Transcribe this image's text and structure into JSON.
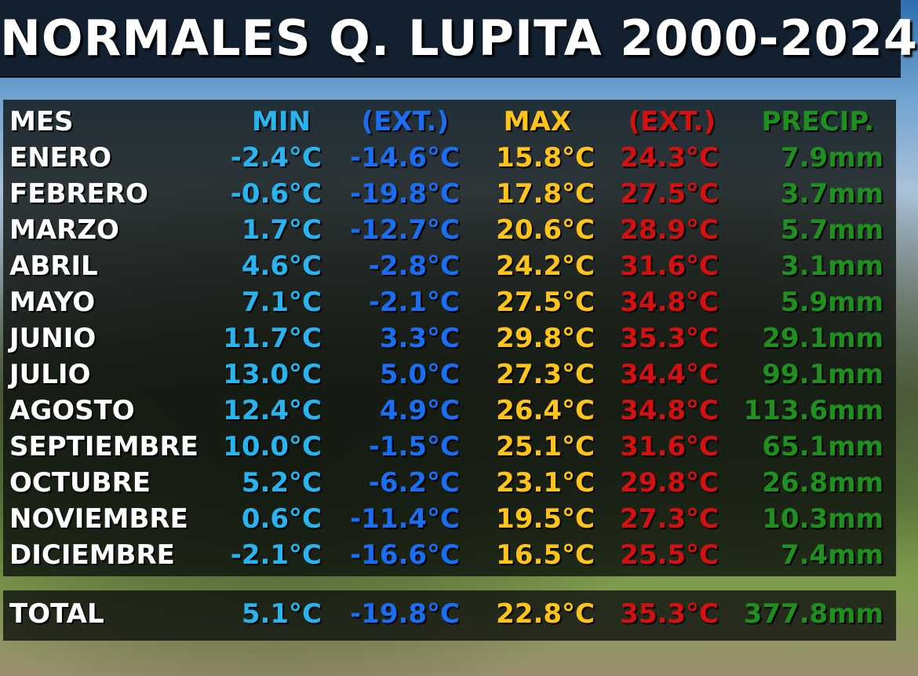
{
  "title": "NORMALES Q. LUPITA 2000-2024",
  "headers": {
    "mes": "MES",
    "min": "MIN",
    "ext_min": "(EXT.)",
    "max": "MAX",
    "ext_max": "(EXT.)",
    "precip": "PRECIP."
  },
  "rows": [
    {
      "mes": "ENERO",
      "min": "-2.4°C",
      "ext_min": "-14.6°C",
      "max": "15.8°C",
      "ext_max": "24.3°C",
      "precip": "7.9mm"
    },
    {
      "mes": "FEBRERO",
      "min": "-0.6°C",
      "ext_min": "-19.8°C",
      "max": "17.8°C",
      "ext_max": "27.5°C",
      "precip": "3.7mm"
    },
    {
      "mes": "MARZO",
      "min": "1.7°C",
      "ext_min": "-12.7°C",
      "max": "20.6°C",
      "ext_max": "28.9°C",
      "precip": "5.7mm"
    },
    {
      "mes": "ABRIL",
      "min": "4.6°C",
      "ext_min": "-2.8°C",
      "max": "24.2°C",
      "ext_max": "31.6°C",
      "precip": "3.1mm"
    },
    {
      "mes": "MAYO",
      "min": "7.1°C",
      "ext_min": "-2.1°C",
      "max": "27.5°C",
      "ext_max": "34.8°C",
      "precip": "5.9mm"
    },
    {
      "mes": "JUNIO",
      "min": "11.7°C",
      "ext_min": "3.3°C",
      "max": "29.8°C",
      "ext_max": "35.3°C",
      "precip": "29.1mm"
    },
    {
      "mes": "JULIO",
      "min": "13.0°C",
      "ext_min": "5.0°C",
      "max": "27.3°C",
      "ext_max": "34.4°C",
      "precip": "99.1mm"
    },
    {
      "mes": "AGOSTO",
      "min": "12.4°C",
      "ext_min": "4.9°C",
      "max": "26.4°C",
      "ext_max": "34.8°C",
      "precip": "113.6mm"
    },
    {
      "mes": "SEPTIEMBRE",
      "min": "10.0°C",
      "ext_min": "-1.5°C",
      "max": "25.1°C",
      "ext_max": "31.6°C",
      "precip": "65.1mm"
    },
    {
      "mes": "OCTUBRE",
      "min": "5.2°C",
      "ext_min": "-6.2°C",
      "max": "23.1°C",
      "ext_max": "29.8°C",
      "precip": "26.8mm"
    },
    {
      "mes": "NOVIEMBRE",
      "min": "0.6°C",
      "ext_min": "-11.4°C",
      "max": "19.5°C",
      "ext_max": "27.3°C",
      "precip": "10.3mm"
    },
    {
      "mes": "DICIEMBRE",
      "min": "-2.1°C",
      "ext_min": "-16.6°C",
      "max": "16.5°C",
      "ext_max": "25.5°C",
      "precip": "7.4mm"
    }
  ],
  "total": {
    "mes": "TOTAL",
    "min": "5.1°C",
    "ext_min": "-19.8°C",
    "max": "22.8°C",
    "ext_max": "35.3°C",
    "precip": "377.8mm"
  },
  "colors": {
    "min": "#29b4f0",
    "ext_min": "#1b6ef2",
    "max": "#ffc419",
    "ext_max": "#d41111",
    "precip": "#1f8f1f"
  }
}
